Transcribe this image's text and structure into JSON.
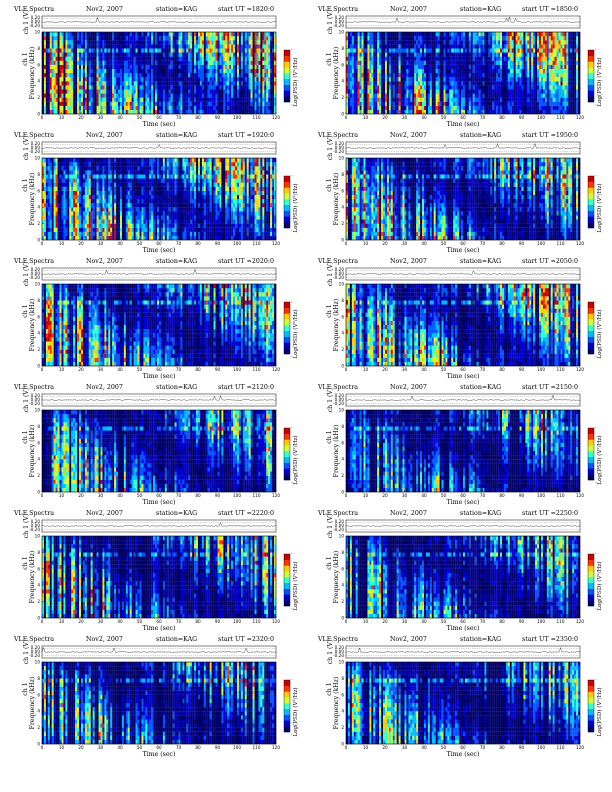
{
  "colors": {
    "spectrogram_scale": [
      "#000066",
      "#0000cc",
      "#0055ff",
      "#00bbff",
      "#33ffcc",
      "#ccff33",
      "#ffcc00",
      "#ff3300",
      "#cc0000"
    ],
    "frame": "#000000",
    "background": "#ffffff"
  },
  "panels": [
    {
      "title": "VLF Spectra",
      "date": "Nov2, 2007",
      "station": "station=KAG",
      "start_ut": "start  UT =1820:0",
      "ch_label": "ch 1 (V)",
      "ylabel": "Frequency (kHz)",
      "ylabel_top": "ch 1",
      "colorbar_label": "Log(PSD) (V²/Hz)",
      "xlabel": "Time (sec)",
      "intensity": 0.78
    },
    {
      "title": "VLF Spectra",
      "date": "Nov2, 2007",
      "station": "station=KAG",
      "start_ut": "start  UT =1850:0",
      "ch_label": "ch 1 (V)",
      "ylabel": "Frequency (kHz)",
      "ylabel_top": "ch 1",
      "colorbar_label": "Log(PSD) (V²/Hz)",
      "xlabel": "Time (sec)",
      "intensity": 0.76
    },
    {
      "title": "VLF Spectra",
      "date": "Nov2, 2007",
      "station": "station=KAG",
      "start_ut": "start  UT =1920:0",
      "ch_label": "ch 1 (V)",
      "ylabel": "Frequency (kHz)",
      "ylabel_top": "ch 1",
      "colorbar_label": "Log(PSD) (V²/Hz)",
      "xlabel": "Time (sec)",
      "intensity": 0.8
    },
    {
      "title": "VLF Spectra",
      "date": "Nov2, 2007",
      "station": "station=KAG",
      "start_ut": "start  UT =1950:0",
      "ch_label": "ch 1 (V)",
      "ylabel": "Frequency (kHz)",
      "ylabel_top": "ch 1",
      "colorbar_label": "Log(PSD) (V²/Hz)",
      "xlabel": "Time (sec)",
      "intensity": 0.74
    },
    {
      "title": "VLF Spectra",
      "date": "Nov2, 2007",
      "station": "station=KAG",
      "start_ut": "start  UT =2020:0",
      "ch_label": "ch 1 (V)",
      "ylabel": "Frequency (kHz)",
      "ylabel_top": "ch 1",
      "colorbar_label": "Log(PSD) (V²/Hz)",
      "xlabel": "Time (sec)",
      "intensity": 0.72
    },
    {
      "title": "VLF Spectra",
      "date": "Nov2, 2007",
      "station": "station=KAG",
      "start_ut": "start  UT =2050:0",
      "ch_label": "ch 1 (V)",
      "ylabel": "Frequency (kHz)",
      "ylabel_top": "ch 1",
      "colorbar_label": "Log(PSD) (V²/Hz)",
      "xlabel": "Time (sec)",
      "intensity": 0.7
    },
    {
      "title": "VLF Spectra",
      "date": "Nov2, 2007",
      "station": "station=KAG",
      "start_ut": "start  UT =2120:0",
      "ch_label": "ch 1 (V)",
      "ylabel": "Frequency (kHz)",
      "ylabel_top": "ch 1",
      "colorbar_label": "Log(PSD) (V²/Hz)",
      "xlabel": "Time (sec)",
      "intensity": 0.45
    },
    {
      "title": "VLF Spectra",
      "date": "Nov2, 2007",
      "station": "station=KAG",
      "start_ut": "start  UT =2150:0",
      "ch_label": "ch 1 (V)",
      "ylabel": "Frequency (kHz)",
      "ylabel_top": "ch 1",
      "colorbar_label": "Log(PSD) (V²/Hz)",
      "xlabel": "Time (sec)",
      "intensity": 0.44
    },
    {
      "title": "VLF Spectra",
      "date": "Nov2, 2007",
      "station": "station=KAG",
      "start_ut": "start  UT =2220:0",
      "ch_label": "ch 1 (V)",
      "ylabel": "Frequency (kHz)",
      "ylabel_top": "ch 1",
      "colorbar_label": "Log(PSD) (V²/Hz)",
      "xlabel": "Time (sec)",
      "intensity": 0.4
    },
    {
      "title": "VLF Spectra",
      "date": "Nov2, 2007",
      "station": "station=KAG",
      "start_ut": "start  UT =2250:0",
      "ch_label": "ch 1 (V)",
      "ylabel": "Frequency (kHz)",
      "ylabel_top": "ch 1",
      "colorbar_label": "Log(PSD) (V²/Hz)",
      "xlabel": "Time (sec)",
      "intensity": 0.38
    },
    {
      "title": "VLF Spectra",
      "date": "Nov2, 2007",
      "station": "station=KAG",
      "start_ut": "start  UT =2320:0",
      "ch_label": "ch 1 (V)",
      "ylabel": "Frequency (kHz)",
      "ylabel_top": "ch 1",
      "colorbar_label": "Log(PSD) (V²/Hz)",
      "xlabel": "Time (sec)",
      "intensity": 0.42
    },
    {
      "title": "VLF Spectra",
      "date": "Nov2, 2007",
      "station": "station=KAG",
      "start_ut": "start  UT =2350:0",
      "ch_label": "ch 1 (V)",
      "ylabel": "Frequency (kHz)",
      "ylabel_top": "ch 1",
      "colorbar_label": "Log(PSD) (V²/Hz)",
      "xlabel": "Time (sec)",
      "intensity": 0.36
    }
  ],
  "chart_data": {
    "type": "heatmap",
    "title": "VLF Spectra",
    "xlabel": "Time (sec)",
    "ylabel": "Frequency (kHz)",
    "xlim": [
      0,
      120
    ],
    "ylim": [
      0,
      10
    ],
    "x_ticks": [
      0,
      10,
      20,
      30,
      40,
      50,
      60,
      70,
      80,
      90,
      100,
      110,
      120
    ],
    "y_ticks": [
      0,
      2,
      4,
      6,
      8,
      10
    ],
    "waveform_ylim": [
      -0.2,
      0.2
    ],
    "waveform_ticks": [
      "0.20",
      "0.00",
      "-0.20"
    ],
    "colorbar_ticks": [
      "-",
      "-"
    ],
    "panels": [
      {
        "start_ut": "1820:0"
      },
      {
        "start_ut": "1850:0"
      },
      {
        "start_ut": "1920:0"
      },
      {
        "start_ut": "1950:0"
      },
      {
        "start_ut": "2020:0"
      },
      {
        "start_ut": "2050:0"
      },
      {
        "start_ut": "2120:0"
      },
      {
        "start_ut": "2150:0"
      },
      {
        "start_ut": "2220:0"
      },
      {
        "start_ut": "2250:0"
      },
      {
        "start_ut": "2320:0"
      },
      {
        "start_ut": "2350:0"
      }
    ]
  }
}
